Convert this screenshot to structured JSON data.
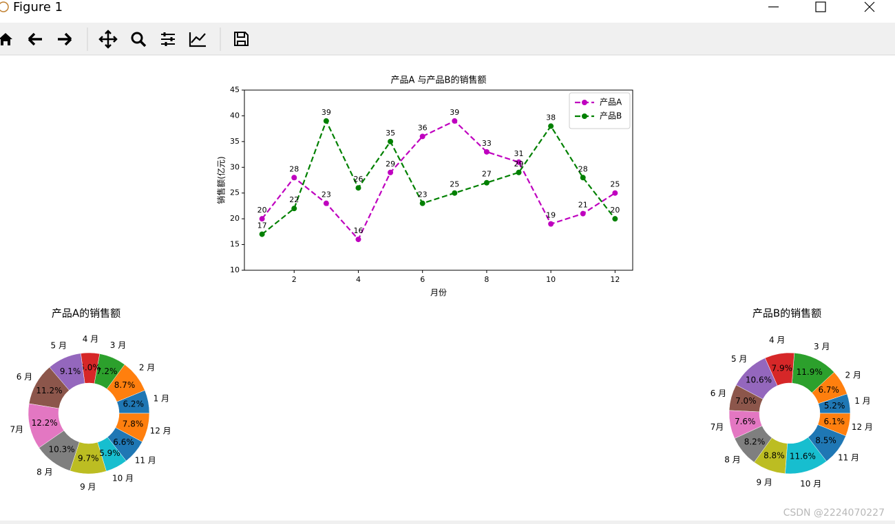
{
  "window": {
    "title": "Figure 1"
  },
  "chart_data": [
    {
      "type": "line",
      "title": "产品A 与产品B的销售额",
      "x_label": "月份",
      "y_label": "销售额(亿元)",
      "x": [
        1,
        2,
        3,
        4,
        5,
        6,
        7,
        8,
        9,
        10,
        11,
        12
      ],
      "series": [
        {
          "name": "产品A",
          "color": "#bf00bf",
          "values": [
            20,
            28,
            23,
            16,
            29,
            36,
            39,
            33,
            31,
            19,
            21,
            25
          ]
        },
        {
          "name": "产品B",
          "color": "#008000",
          "values": [
            17,
            22,
            39,
            26,
            35,
            23,
            25,
            27,
            29,
            38,
            28,
            20
          ]
        }
      ],
      "xlim": [
        0.45,
        12.55
      ],
      "xticks": [
        2,
        4,
        6,
        8,
        10,
        12
      ],
      "ylim": [
        10,
        45
      ],
      "yticks": [
        10,
        15,
        20,
        25,
        30,
        35,
        40,
        45
      ],
      "line_style": "dashed",
      "legend": "upper right"
    },
    {
      "type": "pie",
      "title": "产品A的销售额",
      "categories": [
        "1 月",
        "2 月",
        "3 月",
        "4 月",
        "5 月",
        "6 月",
        "7月",
        "8 月",
        "9 月",
        "10 月",
        "11 月",
        "12 月"
      ],
      "values": [
        6.2,
        8.7,
        7.2,
        5.0,
        9.1,
        11.2,
        12.2,
        10.3,
        9.7,
        5.9,
        6.6,
        7.8
      ],
      "value_labels": [
        "6.2%",
        "8.7%",
        "7.2%",
        "5.0%",
        "9.1%",
        "11.2%",
        "12.2%",
        "10.3%",
        "9.7%",
        "5.9%",
        "6.6%",
        "7.8%"
      ],
      "colors": [
        "#1f77b4",
        "#ff7f0e",
        "#2ca02c",
        "#d62728",
        "#9467bd",
        "#8c564b",
        "#e377c2",
        "#7f7f7f",
        "#bcbd22",
        "#17becf",
        "#1f77b4",
        "#ff7f0e"
      ]
    },
    {
      "type": "pie",
      "title": "产品B的销售额",
      "categories": [
        "1 月",
        "2 月",
        "3 月",
        "4 月",
        "5 月",
        "6 月",
        "7月",
        "8 月",
        "9 月",
        "10 月",
        "11 月",
        "12 月"
      ],
      "values": [
        5.2,
        6.7,
        11.9,
        7.9,
        10.6,
        7.0,
        7.6,
        8.2,
        8.8,
        11.6,
        8.5,
        6.1
      ],
      "value_labels": [
        "5.2%",
        "6.7%",
        "11.9%",
        "7.9%",
        "10.6%",
        "7.0%",
        "7.6%",
        "8.2%",
        "8.8%",
        "11.6%",
        "8.5%",
        "6.1%"
      ],
      "colors": [
        "#1f77b4",
        "#ff7f0e",
        "#2ca02c",
        "#d62728",
        "#9467bd",
        "#8c564b",
        "#e377c2",
        "#7f7f7f",
        "#bcbd22",
        "#17becf",
        "#1f77b4",
        "#ff7f0e"
      ]
    }
  ],
  "watermark": "CSDN @2224070227"
}
